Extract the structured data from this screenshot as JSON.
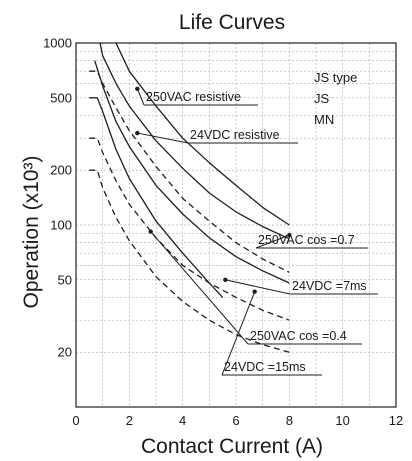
{
  "chart_data": {
    "type": "line",
    "title": "Life Curves",
    "xlabel": "Contact Current (A)",
    "ylabel": "Operation (x10³)",
    "xlim": [
      0,
      12
    ],
    "ylim": [
      10,
      1000
    ],
    "yscale": "log",
    "grid": true,
    "x_ticks": [
      0,
      2,
      4,
      6,
      8,
      10,
      12
    ],
    "x_tick_labels": [
      "0",
      "2",
      "4",
      "6",
      "8",
      "10",
      "12"
    ],
    "y_ticks": [
      20,
      50,
      100,
      200,
      500,
      1000
    ],
    "y_tick_labels": [
      "20",
      "50",
      "100",
      "200",
      "500",
      "1000"
    ],
    "legend": [
      "JS type",
      "JS",
      "MN"
    ],
    "series": [
      {
        "name": "250VAC resistive",
        "style": "solid",
        "x": [
          1.5,
          2,
          3,
          4,
          5,
          6,
          7,
          8
        ],
        "y": [
          1000,
          700,
          450,
          300,
          220,
          165,
          125,
          100
        ]
      },
      {
        "name": "24VDC resistive",
        "style": "solid",
        "x": [
          0.9,
          1,
          1.5,
          2,
          3,
          4,
          5,
          6,
          7,
          8
        ],
        "y": [
          1000,
          850,
          600,
          450,
          290,
          205,
          150,
          118,
          98,
          84
        ]
      },
      {
        "name": "250VAC cos =0.7",
        "style": "dashed",
        "x": [
          0.5,
          0.8,
          1,
          1.5,
          2,
          3,
          4,
          5,
          6,
          7,
          8
        ],
        "y": [
          700,
          700,
          600,
          440,
          330,
          210,
          140,
          105,
          80,
          65,
          55
        ]
      },
      {
        "name": "24VDC =7ms",
        "style": "solid",
        "x": [
          0.7,
          1,
          1.5,
          2,
          3,
          4,
          5,
          6,
          7,
          8
        ],
        "y": [
          800,
          580,
          370,
          270,
          165,
          115,
          85,
          67,
          56,
          48
        ]
      },
      {
        "name": "250VAC cos =0.4",
        "style": "dashed",
        "x": [
          0.5,
          0.8,
          1,
          1.5,
          2,
          3,
          4,
          5,
          6,
          7,
          8
        ],
        "y": [
          300,
          300,
          250,
          175,
          130,
          85,
          60,
          48,
          40,
          34,
          30
        ]
      },
      {
        "name": "24VDC =15ms",
        "style": "solid",
        "x": [
          0.5,
          0.8,
          1,
          1.5,
          2,
          3,
          4,
          5,
          5.5
        ],
        "y": [
          500,
          500,
          420,
          260,
          180,
          105,
          70,
          48,
          40
        ]
      },
      {
        "name": "",
        "style": "dashed",
        "x": [
          0.5,
          0.8,
          1,
          1.5,
          2,
          3,
          4,
          5,
          6,
          7,
          8
        ],
        "y": [
          200,
          200,
          160,
          110,
          82,
          52,
          38,
          30,
          25,
          22,
          20
        ]
      }
    ],
    "annotations": [
      {
        "text": "250VAC resistive",
        "series": 0,
        "x": 2.3,
        "y": 560
      },
      {
        "text": "24VDC resistive",
        "series": 1,
        "x": 2.3,
        "y": 320
      },
      {
        "text": "250VAC cos =0.7",
        "series": 2,
        "x": 8.0,
        "y": 88
      },
      {
        "text": "24VDC  =7ms",
        "series": 3,
        "x": 5.6,
        "y": 50
      },
      {
        "text": "250VAC cos =0.4",
        "series": 4,
        "x": 2.8,
        "y": 92
      },
      {
        "text": "24VDC  =15ms",
        "series": 5,
        "x": 6.7,
        "y": 43
      }
    ]
  }
}
